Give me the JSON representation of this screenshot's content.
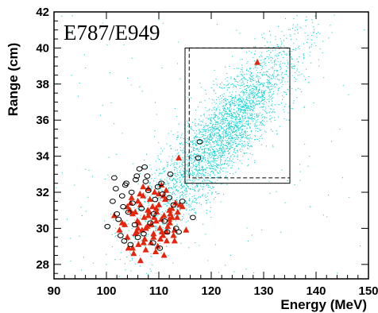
{
  "chart_data": {
    "type": "scatter",
    "title": "E787/E949",
    "xlabel": "Energy (MeV)",
    "ylabel": "Range (cm)",
    "xlim": [
      90,
      150
    ],
    "ylim": [
      27.2,
      42
    ],
    "x_ticks": [
      "90",
      "100",
      "110",
      "120",
      "130",
      "140",
      "150"
    ],
    "y_ticks": [
      "28",
      "30",
      "32",
      "34",
      "36",
      "38",
      "40",
      "42"
    ],
    "grid": false,
    "legend": "none",
    "series": [
      {
        "marker": "cyan dots",
        "color": "#19d3d3",
        "description_values": {
          "main_cluster_center": [
            123,
            35.5
          ],
          "lower_lobe_center": [
            111,
            32
          ],
          "approx_points": 14000
        }
      },
      {
        "marker": "red filled triangles",
        "color": "#e8250c",
        "x": [
          103.5,
          104,
          104.5,
          105,
          105.2,
          105.8,
          106,
          106.2,
          106.5,
          106.8,
          107,
          107.2,
          107.5,
          107.8,
          108,
          108.2,
          108.5,
          108.8,
          109,
          109.2,
          109.5,
          109.8,
          110,
          110.2,
          110.5,
          110.8,
          111,
          111.2,
          111.5,
          112,
          112.5,
          113,
          113.5,
          114,
          104.2,
          105.5,
          106.4,
          107.3,
          108.6,
          109.4,
          110.6,
          111.4,
          112.2,
          113.2,
          101.5,
          102.5,
          103,
          104.8,
          106.1,
          107.9,
          109.1,
          110.3,
          111.7,
          112.8,
          113.6,
          114.5,
          115.2,
          104.6,
          105.9,
          107.1,
          108.3,
          109.6,
          110.9,
          112.1,
          104,
          105,
          106,
          107,
          108,
          109,
          110,
          111,
          112,
          113,
          108.5,
          109.5,
          110.5,
          111.5,
          105.5,
          106.5,
          107.5,
          112.5,
          113.8,
          128.8
        ],
        "y": [
          30.2,
          29.5,
          31.0,
          30.8,
          28.6,
          29.8,
          31.5,
          30.3,
          28.2,
          29.9,
          31.8,
          30.6,
          28.8,
          30.1,
          32.2,
          30.9,
          29.2,
          31.2,
          29.7,
          32.0,
          30.4,
          29.0,
          31.3,
          30.0,
          32.4,
          29.6,
          30.7,
          31.6,
          29.3,
          30.5,
          31.1,
          29.9,
          30.6,
          31.3,
          28.9,
          30.9,
          31.9,
          29.4,
          30.2,
          28.7,
          29.8,
          32.1,
          30.8,
          31.4,
          30.7,
          29.9,
          30.3,
          31.7,
          29.1,
          31.0,
          30.6,
          29.4,
          30.1,
          29.6,
          30.9,
          31.2,
          29.9,
          31.4,
          30.4,
          29.2,
          31.6,
          30.9,
          31.8,
          30.3,
          31.2,
          28.9,
          30.0,
          32.3,
          30.7,
          29.5,
          31.9,
          28.5,
          31.0,
          29.3,
          30.2,
          31.1,
          30.5,
          29.8,
          29.7,
          31.3,
          30.0,
          30.6,
          33.9,
          39.2
        ]
      },
      {
        "marker": "open black circles",
        "color": "#000000",
        "x": [
          100.2,
          101.5,
          101.8,
          102.3,
          102.7,
          103.0,
          103.4,
          103.8,
          104.2,
          104.6,
          105.0,
          105.4,
          105.8,
          106.3,
          106.7,
          107.1,
          107.5,
          108.0,
          108.4,
          108.9,
          109.3,
          109.8,
          110.2,
          110.7,
          111.1,
          111.6,
          112.2,
          112.8,
          113.3,
          117.8,
          117.5,
          102.0,
          103.2,
          104.8,
          106.0,
          107.8,
          109.0,
          110.5,
          112.0,
          113.8,
          114.5,
          116.5,
          101.2,
          103.6,
          105.6,
          107.3
        ],
        "y": [
          30.1,
          32.8,
          32.2,
          30.5,
          29.6,
          31.8,
          29.3,
          32.5,
          30.9,
          29.1,
          31.4,
          30.2,
          32.9,
          33.3,
          31.1,
          29.7,
          32.6,
          32.1,
          30.3,
          29.2,
          31.6,
          32.3,
          28.9,
          31.9,
          30.4,
          29.8,
          33.0,
          31.3,
          30.0,
          34.8,
          33.9,
          30.8,
          31.2,
          32.0,
          29.5,
          32.9,
          30.8,
          32.5,
          31.7,
          29.8,
          31.5,
          30.6,
          31.5,
          32.4,
          32.7,
          33.4
        ]
      }
    ],
    "boxes": [
      {
        "style": "solid",
        "x": [
          115,
          135
        ],
        "y": [
          32.5,
          40
        ]
      },
      {
        "style": "dashed",
        "x": [
          115.8,
          135
        ],
        "y": [
          32.8,
          40
        ]
      }
    ]
  }
}
